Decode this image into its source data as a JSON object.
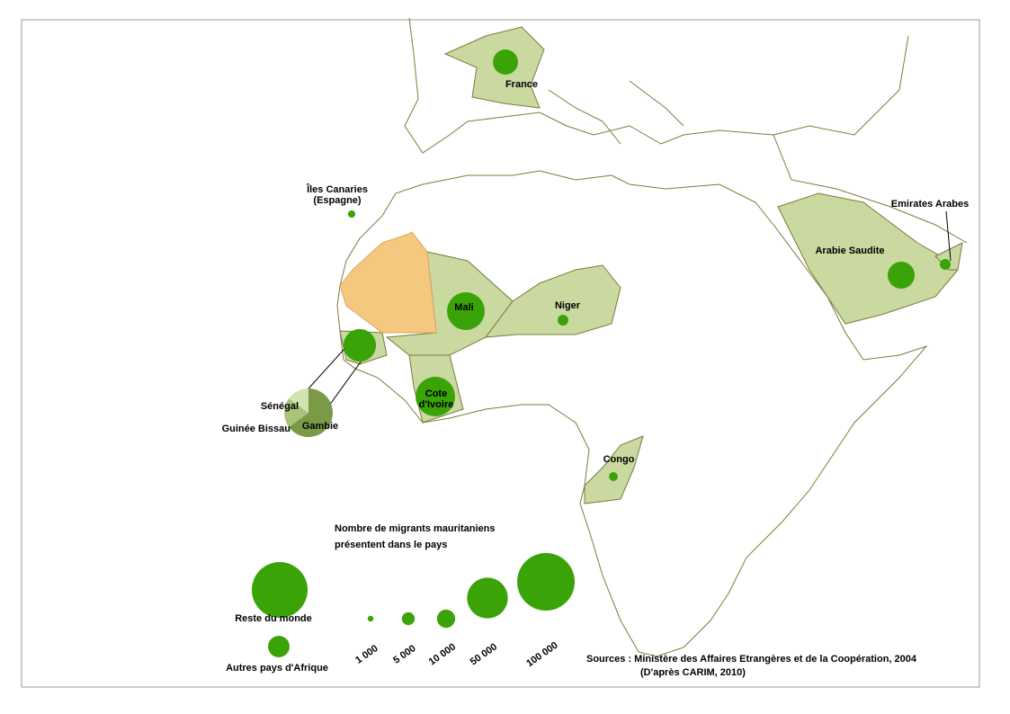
{
  "legend": {
    "title_lines": [
      "Nombre de migrants mauritaniens",
      "présentent dans le pays"
    ],
    "sizes": [
      {
        "value": 1000,
        "label": "1 000"
      },
      {
        "value": 5000,
        "label": "5 000"
      },
      {
        "value": 10000,
        "label": "10 000"
      },
      {
        "value": 50000,
        "label": "50 000"
      },
      {
        "value": 100000,
        "label": "100 000"
      }
    ]
  },
  "symbol_color": "#3aa308",
  "countries": [
    {
      "label_lines": [
        "France"
      ],
      "value": 19000
    },
    {
      "label_lines": [
        "Mali"
      ],
      "value": 43000
    },
    {
      "label_lines": [
        "Cote",
        "d'Ivoire"
      ],
      "value": 47000
    },
    {
      "label_lines": [
        "Niger"
      ],
      "value": 3500
    },
    {
      "label_lines": [
        "Arabie Saudite"
      ],
      "value": 22000
    },
    {
      "label_lines": [
        "Emirates Arabes"
      ],
      "value": 3500
    },
    {
      "label_lines": [
        "Congo"
      ],
      "value": 2400
    },
    {
      "label_lines": [
        "Îles Canaries",
        "(Espagne)"
      ],
      "value": 1600
    }
  ],
  "senegambia": {
    "value": 32000,
    "slices": [
      {
        "label": "Gambie",
        "value": 65,
        "color": "#7a9a48"
      },
      {
        "label": "Guinée Bissau",
        "value": 20,
        "color": "#a9c47a"
      },
      {
        "label": "Sénégal",
        "value": 15,
        "color": "#d3e3b0"
      }
    ]
  },
  "others": [
    {
      "label": "Reste du monde",
      "value": 94000
    },
    {
      "label": "Autres pays d'Afrique",
      "value": 14000
    }
  ],
  "sources": [
    "Sources : Ministère des Affaires Etrangères et de la Coopération, 2004",
    "(D'après CARIM, 2010)"
  ]
}
